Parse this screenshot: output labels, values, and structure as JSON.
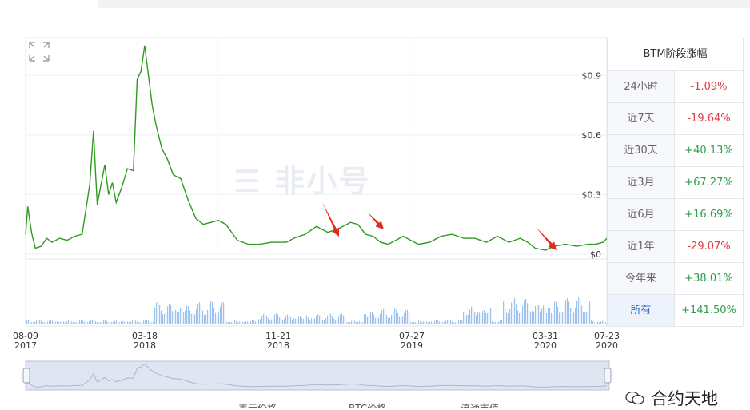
{
  "panel": {
    "title": "BTM阶段涨幅",
    "rows": [
      {
        "label": "24小时",
        "value": "-1.09%",
        "dir": "neg"
      },
      {
        "label": "近7天",
        "value": "-19.64%",
        "dir": "neg"
      },
      {
        "label": "近30天",
        "value": "+40.13%",
        "dir": "pos"
      },
      {
        "label": "近3月",
        "value": "+67.27%",
        "dir": "pos"
      },
      {
        "label": "近6月",
        "value": "+16.69%",
        "dir": "pos"
      },
      {
        "label": "近1年",
        "value": "-29.07%",
        "dir": "neg"
      },
      {
        "label": "今年来",
        "value": "+38.01%",
        "dir": "pos"
      },
      {
        "label": "所有",
        "value": "+141.50%",
        "dir": "pos",
        "active": true
      }
    ]
  },
  "watermark": "非小号",
  "wechat_caption": "合约天地",
  "legend": {
    "items": [
      "美元价格",
      "BTC价格",
      "流通市值"
    ]
  },
  "colors": {
    "price_line": "#2f9a1f",
    "volume_bar": "#9ec2ee",
    "arrow": "#e8261d",
    "up": "#2e9e4e",
    "down": "#e03a45"
  },
  "chart_data": {
    "type": "line",
    "ylabel": "",
    "yticks": [
      "$0",
      "$0.3",
      "$0.6",
      "$0.9"
    ],
    "ylim": [
      0,
      1.05
    ],
    "x_tick_labels": [
      {
        "date": "08-09",
        "year": "2017"
      },
      {
        "date": "03-18",
        "year": "2018"
      },
      {
        "date": "11-21",
        "year": "2018"
      },
      {
        "date": "07-27",
        "year": "2019"
      },
      {
        "date": "03-31",
        "year": "2020"
      },
      {
        "date": "07-23",
        "year": "2020"
      }
    ],
    "grid": true,
    "series": [
      {
        "x": [
          "2017-08-09",
          "2017-08-13",
          "2017-08-20",
          "2017-08-27",
          "2017-09-07",
          "2017-09-17",
          "2017-09-27",
          "2017-10-11",
          "2017-10-25",
          "2017-11-08",
          "2017-11-22",
          "2017-12-06",
          "2017-12-13",
          "2017-12-17",
          "2017-12-20",
          "2017-12-27",
          "2018-01-03",
          "2018-01-10",
          "2018-01-17",
          "2018-01-24",
          "2018-02-04",
          "2018-02-14",
          "2018-02-25",
          "2018-03-04",
          "2018-03-11",
          "2018-03-18",
          "2018-03-25",
          "2018-04-01",
          "2018-04-08",
          "2018-04-19",
          "2018-04-29",
          "2018-05-10",
          "2018-05-24",
          "2018-06-07",
          "2018-06-21",
          "2018-07-05",
          "2018-07-19",
          "2018-08-02",
          "2018-08-16",
          "2018-09-06",
          "2018-09-27",
          "2018-10-18",
          "2018-11-08",
          "2018-11-22",
          "2018-12-06",
          "2018-12-20",
          "2019-01-10",
          "2019-01-31",
          "2019-02-21",
          "2019-03-14",
          "2019-04-04",
          "2019-04-18",
          "2019-05-02",
          "2019-05-16",
          "2019-05-30",
          "2019-06-13",
          "2019-06-27",
          "2019-07-11",
          "2019-07-25",
          "2019-08-08",
          "2019-08-29",
          "2019-09-19",
          "2019-10-10",
          "2019-10-31",
          "2019-11-21",
          "2019-12-12",
          "2020-01-02",
          "2020-01-23",
          "2020-02-13",
          "2020-02-27",
          "2020-03-12",
          "2020-03-31",
          "2020-04-16",
          "2020-05-07",
          "2020-05-28",
          "2020-06-18",
          "2020-07-02",
          "2020-07-16",
          "2020-07-23"
        ],
        "values": [
          0.1,
          0.24,
          0.11,
          0.03,
          0.04,
          0.08,
          0.06,
          0.08,
          0.07,
          0.09,
          0.1,
          0.35,
          0.62,
          0.4,
          0.25,
          0.35,
          0.45,
          0.3,
          0.36,
          0.26,
          0.34,
          0.43,
          0.42,
          0.88,
          0.92,
          1.05,
          0.9,
          0.75,
          0.65,
          0.53,
          0.48,
          0.4,
          0.38,
          0.27,
          0.18,
          0.15,
          0.16,
          0.17,
          0.15,
          0.07,
          0.05,
          0.05,
          0.06,
          0.06,
          0.06,
          0.08,
          0.1,
          0.14,
          0.11,
          0.13,
          0.16,
          0.15,
          0.1,
          0.09,
          0.06,
          0.05,
          0.07,
          0.09,
          0.07,
          0.05,
          0.06,
          0.09,
          0.1,
          0.08,
          0.08,
          0.06,
          0.09,
          0.06,
          0.08,
          0.06,
          0.03,
          0.02,
          0.04,
          0.05,
          0.04,
          0.05,
          0.05,
          0.06,
          0.08
        ]
      }
    ]
  }
}
